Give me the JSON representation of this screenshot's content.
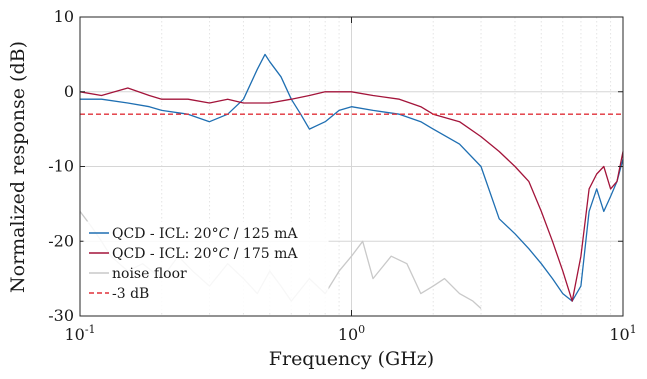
{
  "chart_data": {
    "type": "line",
    "xlabel": "Frequency (GHz)",
    "ylabel": "Normalized response (dB)",
    "xscale": "log",
    "xlim": [
      0.1,
      10
    ],
    "ylim": [
      -30,
      10
    ],
    "grid": true,
    "legend_position": "bottom-left",
    "y_ticks": [
      10,
      0,
      -10,
      -20,
      -30
    ],
    "y_tick_labels": [
      "10",
      "0",
      "-10",
      "-20",
      "-30"
    ],
    "x_ticks": [
      0.1,
      1,
      10
    ],
    "x_tick_labels": [
      {
        "base": "10",
        "exp": "-1"
      },
      {
        "base": "10",
        "exp": "0"
      },
      {
        "base": "10",
        "exp": "1"
      }
    ],
    "series": [
      {
        "name": "QCD - ICL: 20°C / 125 mA",
        "legend_parts": [
          "QCD - ICL: 20°",
          "C",
          " / 125 mA"
        ],
        "color": "#1f6fb2",
        "style": "solid",
        "x": [
          0.1,
          0.12,
          0.15,
          0.18,
          0.2,
          0.25,
          0.3,
          0.35,
          0.4,
          0.45,
          0.48,
          0.5,
          0.55,
          0.6,
          0.65,
          0.7,
          0.8,
          0.9,
          1.0,
          1.2,
          1.5,
          1.8,
          2.0,
          2.5,
          3.0,
          3.5,
          4.0,
          4.5,
          5.0,
          5.5,
          6.0,
          6.5,
          7.0,
          7.5,
          8.0,
          8.5,
          9.0,
          9.5,
          10.0
        ],
        "y": [
          -1,
          -1,
          -1.5,
          -2,
          -2.5,
          -3,
          -4,
          -3,
          -1,
          3,
          5,
          4,
          2,
          -1,
          -3,
          -5,
          -4,
          -2.5,
          -2,
          -2.5,
          -3,
          -4,
          -5,
          -7,
          -10,
          -17,
          -19,
          -21,
          -23,
          -25,
          -27,
          -28,
          -26,
          -16,
          -13,
          -16,
          -14,
          -12,
          -9
        ]
      },
      {
        "name": "QCD - ICL: 20°C / 175 mA",
        "legend_parts": [
          "QCD - ICL: 20°",
          "C",
          " / 175 mA"
        ],
        "color": "#a3143a",
        "style": "solid",
        "x": [
          0.1,
          0.12,
          0.15,
          0.18,
          0.2,
          0.25,
          0.3,
          0.35,
          0.4,
          0.45,
          0.5,
          0.6,
          0.7,
          0.8,
          0.9,
          1.0,
          1.2,
          1.5,
          1.8,
          2.0,
          2.5,
          3.0,
          3.5,
          4.0,
          4.5,
          5.0,
          5.5,
          6.0,
          6.5,
          7.0,
          7.5,
          8.0,
          8.5,
          9.0,
          9.5,
          10.0
        ],
        "y": [
          0,
          -0.5,
          0.5,
          -0.5,
          -1,
          -1,
          -1.5,
          -1,
          -1.5,
          -1.5,
          -1.5,
          -1,
          -0.5,
          0,
          0,
          0,
          -0.5,
          -1,
          -2,
          -3,
          -4,
          -6,
          -8,
          -10,
          -12,
          -16,
          -20,
          -24,
          -28,
          -22,
          -13,
          -11,
          -10,
          -13,
          -12,
          -8
        ]
      },
      {
        "name": "noise floor",
        "color": "#c9c9c9",
        "style": "solid",
        "x": [
          0.1,
          0.11,
          0.12,
          0.13,
          0.15,
          0.17,
          0.2,
          0.23,
          0.26,
          0.3,
          0.35,
          0.4,
          0.45,
          0.5,
          0.55,
          0.6,
          0.7,
          0.8,
          0.9,
          1.0,
          1.1,
          1.2,
          1.4,
          1.6,
          1.8,
          2.0,
          2.2,
          2.5,
          2.8,
          3.0
        ],
        "y": [
          -16,
          -18,
          -20,
          -22,
          -24,
          -23,
          -25,
          -22,
          -24,
          -26,
          -23,
          -25,
          -27,
          -24,
          -26,
          -28,
          -25,
          -27,
          -24,
          -22,
          -20,
          -25,
          -22,
          -23,
          -27,
          -26,
          -25,
          -27,
          -28,
          -29
        ]
      },
      {
        "name": "-3 dB",
        "color": "#e0303a",
        "style": "dashed",
        "x": [
          0.1,
          10
        ],
        "y": [
          -3,
          -3
        ]
      }
    ]
  }
}
